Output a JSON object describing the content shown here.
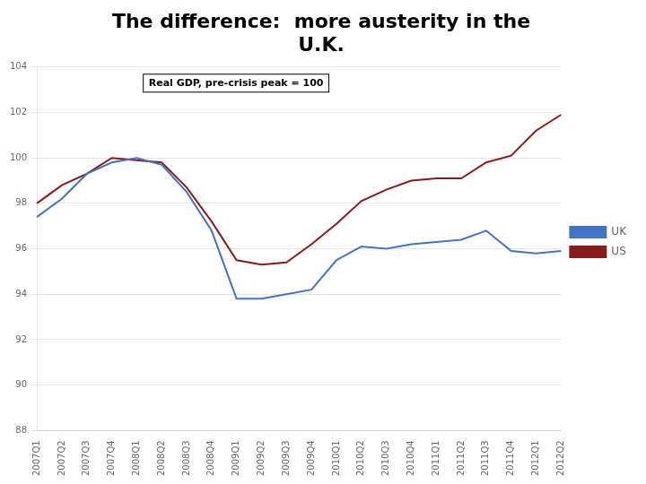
{
  "chart_data": {
    "type": "line",
    "title": [
      "The difference:  more austerity in the",
      "U.K."
    ],
    "annotations": [
      "Real GDP, pre-crisis peak = 100"
    ],
    "categories": [
      "2007Q1",
      "2007Q2",
      "2007Q3",
      "2007Q4",
      "2008Q1",
      "2008Q2",
      "2008Q3",
      "2008Q4",
      "2009Q1",
      "2009Q2",
      "2009Q3",
      "2009Q4",
      "2010Q1",
      "2010Q2",
      "2010Q3",
      "2010Q4",
      "2011Q1",
      "2011Q2",
      "2011Q3",
      "2011Q4",
      "2012Q1",
      "2012Q2"
    ],
    "series": [
      {
        "name": "UK",
        "color": "#4472C4",
        "values": [
          97.4,
          98.2,
          99.3,
          99.8,
          100.0,
          99.7,
          98.5,
          96.8,
          93.8,
          93.8,
          94.0,
          94.2,
          95.5,
          96.1,
          96.0,
          96.2,
          96.3,
          96.4,
          96.8,
          95.9,
          95.8,
          95.9
        ]
      },
      {
        "name": "US",
        "color": "#8B1A1A",
        "values": [
          98.0,
          98.8,
          99.3,
          100.0,
          99.9,
          99.8,
          98.7,
          97.2,
          95.5,
          95.3,
          95.4,
          96.2,
          97.1,
          98.1,
          98.6,
          99.0,
          99.1,
          99.1,
          99.8,
          100.1,
          101.2,
          101.9
        ]
      }
    ],
    "ylim": [
      88,
      104
    ],
    "yticks": [
      88,
      90,
      92,
      94,
      96,
      98,
      100,
      102,
      104
    ],
    "grid": true,
    "legend": "right"
  }
}
